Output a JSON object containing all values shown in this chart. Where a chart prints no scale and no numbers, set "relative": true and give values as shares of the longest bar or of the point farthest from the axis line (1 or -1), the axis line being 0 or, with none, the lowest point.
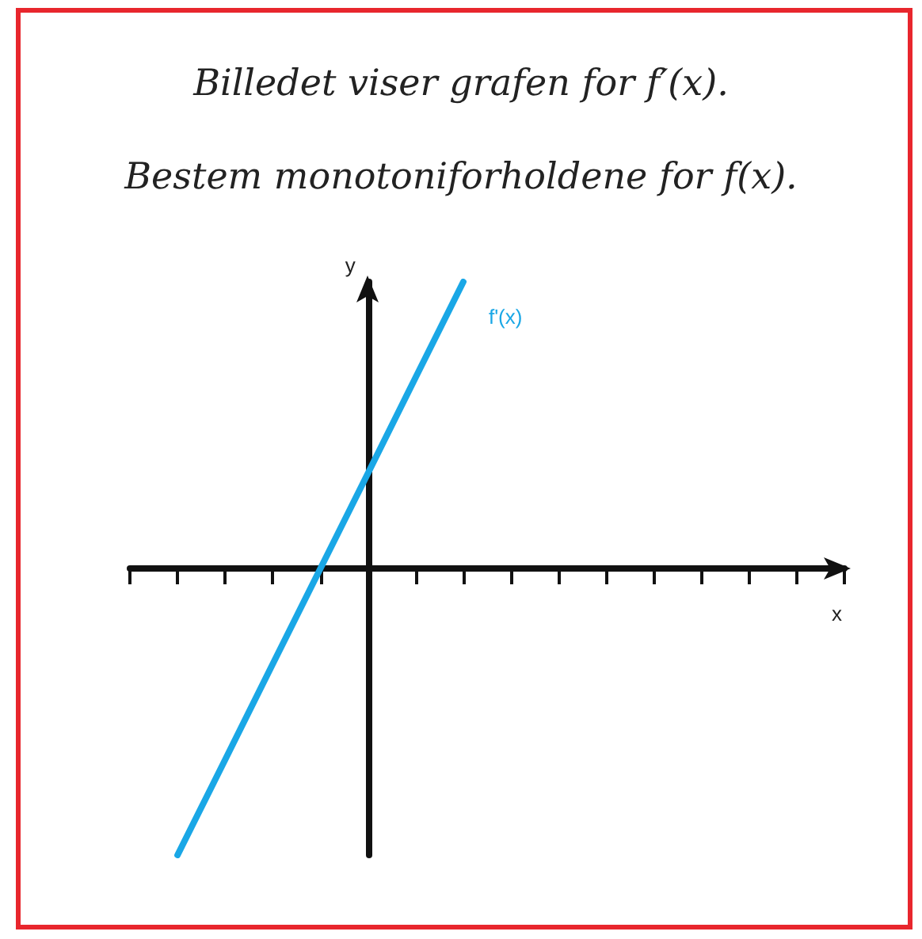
{
  "chart_data": {
    "type": "line",
    "title": "Billedet viser grafen for f′(x).",
    "subtitle": "Bestem monotoniforholdene for f(x).",
    "xlabel": "x",
    "ylabel": "y",
    "categories": [
      null,
      null,
      null,
      null,
      null,
      null,
      null,
      null,
      null,
      null,
      null,
      null,
      null,
      null,
      null,
      null
    ],
    "series": [
      {
        "name": "f'(x)",
        "color": "#1aa7e6",
        "values": [
          null,
          -1,
          -0.667,
          -0.333,
          0,
          0.333,
          0.667,
          1,
          null,
          null,
          null,
          null,
          null,
          null,
          null,
          null
        ]
      }
    ],
    "relative": true,
    "grid": false,
    "legend": false,
    "marker": "none",
    "line_style": "solid"
  }
}
